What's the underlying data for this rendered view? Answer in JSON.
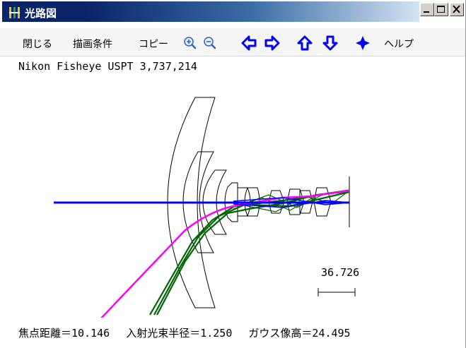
{
  "window": {
    "title": "光路図"
  },
  "menu": {
    "close": "閉じる",
    "draw_settings": "描画条件",
    "copy": "コピー",
    "help": "ヘルプ"
  },
  "toolbar_icons": [
    "zoom-in-icon",
    "zoom-out-icon",
    "arrow-left-icon",
    "arrow-right-icon",
    "arrow-up-icon",
    "arrow-down-icon",
    "move-cross-icon"
  ],
  "diagram": {
    "title": "Nikon Fisheye USPT 3,737,214",
    "scale_value": "36.726"
  },
  "footer": {
    "focal_length": "焦点距離＝10.146",
    "entrance_radius": "入射光束半径＝1.250",
    "gauss_height": "ガウス像高＝24.495"
  },
  "colors": {
    "title_bar": "#0a246a",
    "ray_axial": "#0000ff",
    "ray_magenta": "#ff00ff",
    "ray_green": "#006400"
  }
}
